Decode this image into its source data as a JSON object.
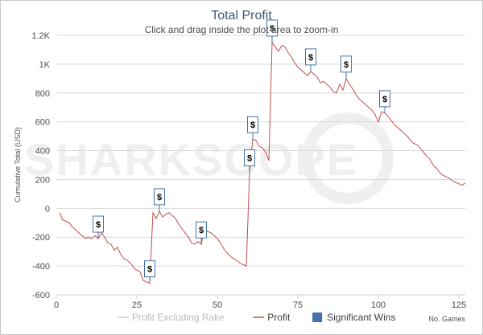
{
  "chart_data": {
    "type": "line",
    "title": "Total Profit",
    "subtitle": "Click and drag inside the plot area to zoom-in",
    "ylabel": "Cumulative Total (USD)",
    "xlabel": "No. Games",
    "xlim": [
      0,
      127
    ],
    "ylim": [
      -600,
      1200
    ],
    "x_ticks": [
      0,
      25,
      50,
      75,
      100,
      125
    ],
    "y_ticks": [
      -600,
      -400,
      -200,
      0,
      200,
      400,
      600,
      800,
      1000,
      1200
    ],
    "y_tick_labels": [
      "-600",
      "-400",
      "-200",
      "0",
      "200",
      "400",
      "600",
      "800",
      "1K",
      "1.2K"
    ],
    "watermark": "SHARKSCOPE",
    "colors": {
      "profit": "#c0504d",
      "excluding_rake": "#dddddd",
      "significant_wins": "#4572a7",
      "marker_border": "#4572a7"
    },
    "legend": [
      {
        "label": "Profit Excluding Rake",
        "color": "#cccccc",
        "type": "line"
      },
      {
        "label": "Profit",
        "color": "#c0504d",
        "type": "line"
      },
      {
        "label": "Significant Wins",
        "color": "#4572a7",
        "type": "square"
      }
    ],
    "series": [
      {
        "name": "Profit",
        "x": [
          1,
          2,
          3,
          4,
          5,
          6,
          7,
          8,
          9,
          10,
          11,
          12,
          13,
          14,
          15,
          16,
          17,
          18,
          19,
          20,
          21,
          22,
          23,
          24,
          25,
          26,
          27,
          28,
          29,
          30,
          31,
          32,
          33,
          34,
          35,
          36,
          37,
          38,
          39,
          40,
          41,
          42,
          43,
          44,
          45,
          46,
          47,
          48,
          49,
          50,
          51,
          52,
          53,
          54,
          55,
          56,
          57,
          58,
          59,
          60,
          61,
          62,
          63,
          64,
          65,
          66,
          67,
          68,
          69,
          70,
          71,
          72,
          73,
          74,
          75,
          76,
          77,
          78,
          79,
          80,
          81,
          82,
          83,
          84,
          85,
          86,
          87,
          88,
          89,
          90,
          91,
          92,
          93,
          94,
          95,
          96,
          97,
          98,
          99,
          100,
          101,
          102,
          103,
          104,
          105,
          106,
          107,
          108,
          109,
          110,
          111,
          112,
          113,
          114,
          115,
          116,
          117,
          118,
          119,
          120,
          121,
          122,
          123,
          124,
          125,
          126,
          127
        ],
        "values": [
          -30,
          -80,
          -90,
          -100,
          -130,
          -150,
          -170,
          -190,
          -210,
          -200,
          -210,
          -190,
          -210,
          -170,
          -200,
          -240,
          -250,
          -290,
          -270,
          -320,
          -350,
          -360,
          -380,
          -410,
          -430,
          -440,
          -500,
          -510,
          -520,
          -30,
          -70,
          -20,
          -60,
          -40,
          -30,
          -50,
          -70,
          -110,
          -140,
          -170,
          -200,
          -240,
          -250,
          -230,
          -250,
          -150,
          -160,
          -170,
          -190,
          -210,
          -240,
          -280,
          -310,
          -330,
          -350,
          -360,
          -380,
          -390,
          -400,
          250,
          480,
          470,
          430,
          420,
          390,
          330,
          1150,
          1120,
          1090,
          1130,
          1120,
          1080,
          1050,
          1010,
          980,
          960,
          940,
          920,
          950,
          930,
          910,
          870,
          880,
          860,
          840,
          810,
          800,
          860,
          820,
          900,
          860,
          830,
          790,
          760,
          740,
          720,
          700,
          680,
          650,
          600,
          670,
          660,
          640,
          610,
          580,
          560,
          540,
          520,
          500,
          470,
          450,
          440,
          420,
          390,
          360,
          340,
          300,
          280,
          250,
          230,
          220,
          210,
          190,
          180,
          170,
          160,
          175
        ]
      }
    ],
    "significant_wins": [
      {
        "x": 13,
        "label": "$"
      },
      {
        "x": 29,
        "label": "$"
      },
      {
        "x": 32,
        "label": "$"
      },
      {
        "x": 45,
        "label": "$"
      },
      {
        "x": 60,
        "label": "$"
      },
      {
        "x": 61,
        "label": "$"
      },
      {
        "x": 67,
        "label": "$"
      },
      {
        "x": 79,
        "label": "$"
      },
      {
        "x": 90,
        "label": "$"
      },
      {
        "x": 102,
        "label": "$"
      }
    ]
  }
}
